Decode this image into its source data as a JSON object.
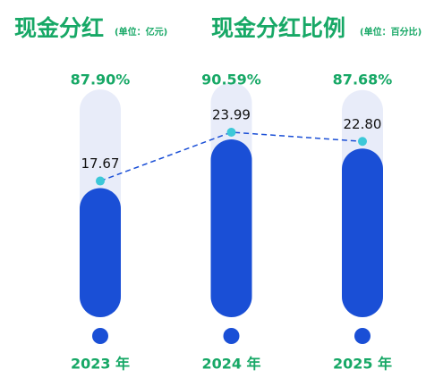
{
  "chart_data": {
    "type": "bar",
    "title": "现金分红",
    "unit": "(单位：亿元)",
    "title2": "现金分红比例",
    "unit2": "(单位：百分比)",
    "categories": [
      "2023 年",
      "2024 年",
      "2025 年"
    ],
    "dividend": {
      "values": [
        17.67,
        23.99,
        22.8
      ],
      "value_labels": [
        "17.67",
        "23.99",
        "22.80"
      ],
      "color": "#1a4fd6"
    },
    "ratio": {
      "values": [
        87.9,
        90.59,
        87.68
      ],
      "value_labels": [
        "87.90%",
        "90.59%",
        "87.68%"
      ],
      "color": "#e8ecf9"
    }
  }
}
